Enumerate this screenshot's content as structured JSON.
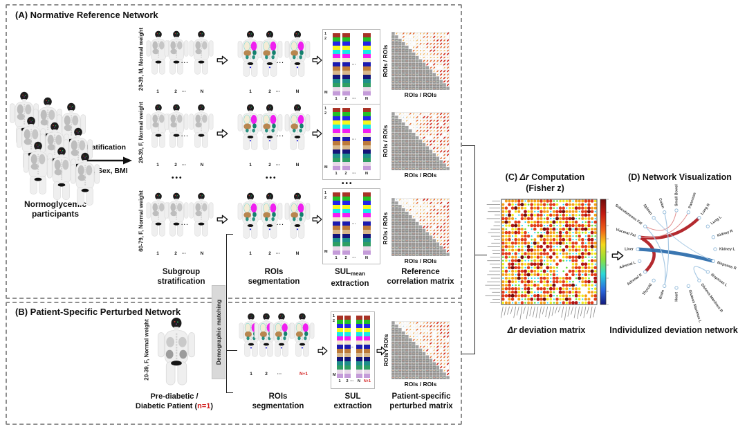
{
  "colors": {
    "red_accent": "#d21f1f",
    "panel_dash": "#8f8f8f",
    "demographic_bg": "#d9d9d9"
  },
  "panelA": {
    "title": "(A) Normative Reference Network",
    "participants_line1": "Normoglycemic",
    "participants_line2": "participants",
    "strat_top": "Stratification",
    "strat_bottom": "Age, Sex, BMI",
    "subgroups": [
      {
        "label": "20-39, M, Normal weight"
      },
      {
        "label": "20-39, F, Normal weight"
      },
      {
        "label": "60-79, F, Normal weight"
      }
    ],
    "dots": "•••",
    "caption_subgroup_1": "Subgroup",
    "caption_subgroup_2": "stratification",
    "caption_rois_1": "ROIs",
    "caption_rois_2": "segmentation",
    "caption_sul_main": "SUL",
    "caption_sul_sub": "mean",
    "caption_sul_2": "extraction",
    "caption_matrix_1": "Reference",
    "caption_matrix_2": "correlation matrix",
    "axis_label": "ROIs / ROIs"
  },
  "panelB": {
    "title": "(B) Patient-Specific Perturbed Network",
    "patient_label": "20-39, F, Normal weight",
    "patient_caption_1": "Pre-diabetic /",
    "patient_caption_2a": "Diabetic Patient (",
    "patient_caption_n": "n=1",
    "patient_caption_2b": ")",
    "demographic": "Demographic matching",
    "caption_rois_1": "ROIs",
    "caption_rois_2": "segmentation",
    "caption_sul_1": "SUL",
    "caption_sul_2": "extraction",
    "caption_matrix_1": "Patient-specific",
    "caption_matrix_2": "perturbed matrix",
    "axis_label": "ROIs / ROIs"
  },
  "panelC": {
    "title_pre": "(C) ",
    "title_italic": "Δr",
    "title_post": " Computation",
    "title_line2": "(Fisher z)",
    "caption_italic": "Δr",
    "caption_post": " deviation matrix",
    "heatmap": {
      "rows": 30,
      "cols": 30,
      "seed": 11,
      "palette": [
        "#2bd7e8",
        "#6fdf3a",
        "#f2e81b",
        "#f59e16",
        "#e23a17",
        "#b21210",
        "#6f0b0b"
      ],
      "colorbar": [
        "#6f0b0b",
        "#c41a10",
        "#f06018",
        "#f5d91a",
        "#8ee03a",
        "#2ad8d8",
        "#2a6ae0",
        "#12197d"
      ]
    }
  },
  "panelD": {
    "title": "(D) Network Visualization",
    "caption": "Individulized deviation network",
    "nodes": [
      "Small Bowel",
      "Pancreas",
      "Lung R",
      "Lung L",
      "Kidney R",
      "Kidney L",
      "Iliopsoas R",
      "Iliopsoas L",
      "Gluteus Maximus R",
      "Gluteus Maximus L",
      "Heart",
      "Brain",
      "Thyroid",
      "Adrenal R",
      "Adrenal L",
      "Liver",
      "Visceral Fat",
      "Subcutaneous Fat",
      "Spleen",
      "Colon"
    ],
    "edges": [
      {
        "a": "Visceral Fat",
        "b": "Lung R",
        "color": "#b01f24",
        "width": 4.5
      },
      {
        "a": "Visceral Fat",
        "b": "Adrenal R",
        "color": "#b01f24",
        "width": 4.5
      },
      {
        "a": "Visceral Fat",
        "b": "Pancreas",
        "color": "#e08a8a",
        "width": 1
      },
      {
        "a": "Subcutaneous Fat",
        "b": "Small Bowel",
        "color": "#e08a8a",
        "width": 1
      },
      {
        "a": "Liver",
        "b": "Iliopsoas R",
        "color": "#2f6fad",
        "width": 5
      },
      {
        "a": "Subcutaneous Fat",
        "b": "Brain",
        "color": "#a3c6e3",
        "width": 1.2
      },
      {
        "a": "Colon",
        "b": "Brain",
        "color": "#a3c6e3",
        "width": 1.2
      },
      {
        "a": "Spleen",
        "b": "Iliopsoas R",
        "color": "#a3c6e3",
        "width": 1
      },
      {
        "a": "Iliopsoas L",
        "b": "Gluteus Maximus R",
        "color": "#a3c6e3",
        "width": 1.2
      }
    ]
  },
  "sul": {
    "palette": [
      "#a93226",
      "#21c027",
      "#2323e8",
      "#f7f71d",
      "#19e8e8",
      "#f21df2",
      "#f3e6cf",
      "#1a1ab0",
      "#bd7a3a",
      "#d9b88a",
      "#15157a",
      "#1f8f8a",
      "#2f9e63",
      "#e8d9e8",
      "#c49bd9"
    ],
    "row_first": "1",
    "row_second": "2",
    "row_last": "M"
  },
  "indices": {
    "one": "1",
    "two": "2",
    "dots": "···",
    "n": "N",
    "n_plus_1": "N+1"
  }
}
